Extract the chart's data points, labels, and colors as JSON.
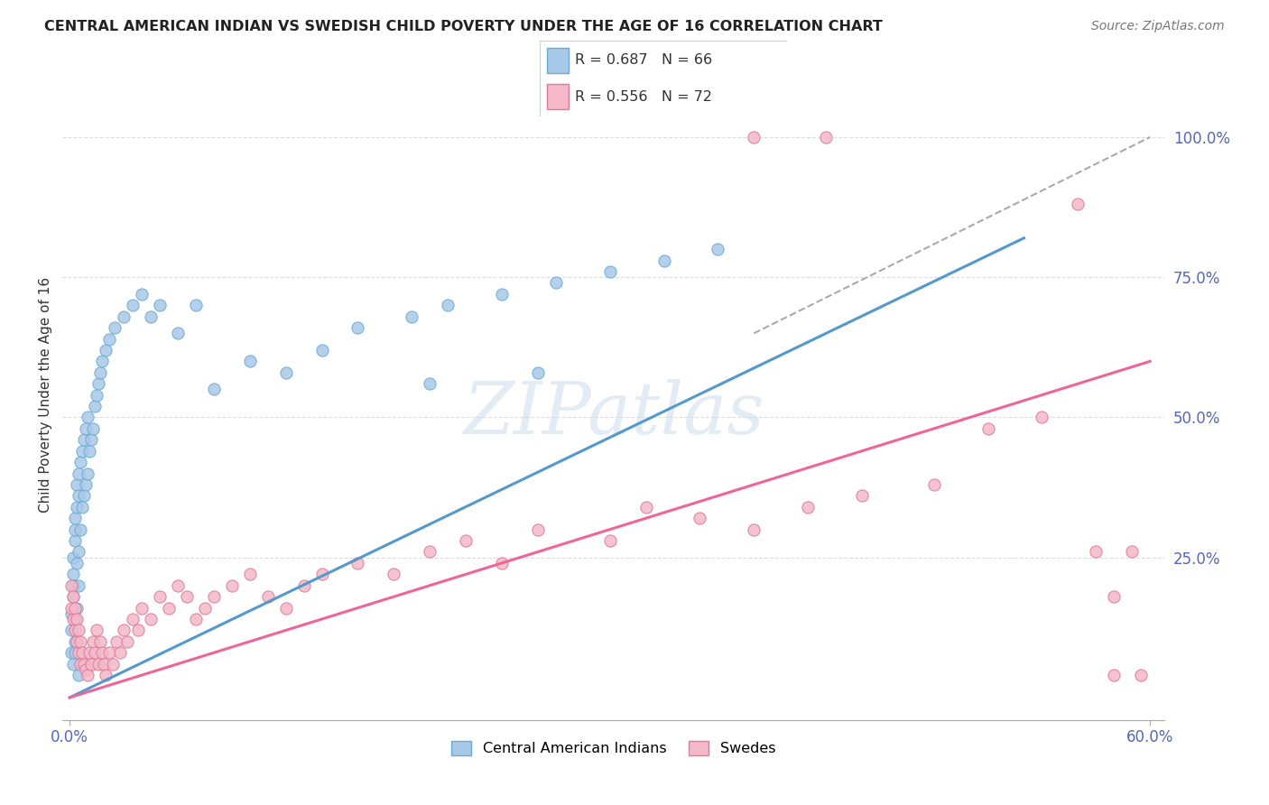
{
  "title": "CENTRAL AMERICAN INDIAN VS SWEDISH CHILD POVERTY UNDER THE AGE OF 16 CORRELATION CHART",
  "source": "Source: ZipAtlas.com",
  "legend_label_1": "Central American Indians",
  "legend_label_2": "Swedes",
  "r1": 0.687,
  "n1": 66,
  "r2": 0.556,
  "n2": 72,
  "color_blue_fill": "#a8c8e8",
  "color_blue_edge": "#6aaad4",
  "color_pink_fill": "#f4b8c8",
  "color_pink_edge": "#e07898",
  "color_blue_line": "#5599cc",
  "color_pink_line": "#ee6699",
  "color_ref_line": "#aaaaaa",
  "blue_line_x0": 0.0,
  "blue_line_y0": 0.0,
  "blue_line_x1": 0.53,
  "blue_line_y1": 0.82,
  "pink_line_x0": 0.0,
  "pink_line_y0": 0.0,
  "pink_line_x1": 0.6,
  "pink_line_y1": 0.6,
  "ref_line_x0": 0.38,
  "ref_line_y0": 0.65,
  "ref_line_x1": 0.6,
  "ref_line_y1": 1.0,
  "xlim_min": -0.004,
  "xlim_max": 0.608,
  "ylim_min": -0.04,
  "ylim_max": 1.12,
  "yticks": [
    0.0,
    0.25,
    0.5,
    0.75,
    1.0
  ],
  "ytick_labels": [
    "",
    "25.0%",
    "50.0%",
    "75.0%",
    "100.0%"
  ],
  "xtick_positions": [
    0.0,
    0.6
  ],
  "xtick_labels": [
    "0.0%",
    "60.0%"
  ],
  "watermark": "ZIPatlas",
  "blue_x": [
    0.001,
    0.001,
    0.001,
    0.002,
    0.002,
    0.002,
    0.002,
    0.003,
    0.003,
    0.003,
    0.003,
    0.003,
    0.004,
    0.004,
    0.004,
    0.004,
    0.005,
    0.005,
    0.005,
    0.005,
    0.006,
    0.006,
    0.007,
    0.007,
    0.008,
    0.008,
    0.009,
    0.009,
    0.01,
    0.01,
    0.011,
    0.012,
    0.013,
    0.014,
    0.015,
    0.016,
    0.017,
    0.018,
    0.02,
    0.022,
    0.025,
    0.03,
    0.035,
    0.04,
    0.045,
    0.05,
    0.06,
    0.07,
    0.08,
    0.1,
    0.12,
    0.14,
    0.16,
    0.19,
    0.21,
    0.24,
    0.27,
    0.3,
    0.33,
    0.36,
    0.002,
    0.003,
    0.005,
    0.008,
    0.2,
    0.26
  ],
  "blue_y": [
    0.08,
    0.12,
    0.15,
    0.18,
    0.2,
    0.22,
    0.25,
    0.1,
    0.14,
    0.28,
    0.3,
    0.32,
    0.16,
    0.24,
    0.34,
    0.38,
    0.2,
    0.26,
    0.36,
    0.4,
    0.3,
    0.42,
    0.34,
    0.44,
    0.36,
    0.46,
    0.38,
    0.48,
    0.4,
    0.5,
    0.44,
    0.46,
    0.48,
    0.52,
    0.54,
    0.56,
    0.58,
    0.6,
    0.62,
    0.64,
    0.66,
    0.68,
    0.7,
    0.72,
    0.68,
    0.7,
    0.65,
    0.7,
    0.55,
    0.6,
    0.58,
    0.62,
    0.66,
    0.68,
    0.7,
    0.72,
    0.74,
    0.76,
    0.78,
    0.8,
    0.06,
    0.08,
    0.04,
    0.06,
    0.56,
    0.58
  ],
  "pink_x": [
    0.001,
    0.001,
    0.002,
    0.002,
    0.003,
    0.003,
    0.004,
    0.004,
    0.005,
    0.005,
    0.006,
    0.006,
    0.007,
    0.008,
    0.009,
    0.01,
    0.011,
    0.012,
    0.013,
    0.014,
    0.015,
    0.016,
    0.017,
    0.018,
    0.019,
    0.02,
    0.022,
    0.024,
    0.026,
    0.028,
    0.03,
    0.032,
    0.035,
    0.038,
    0.04,
    0.045,
    0.05,
    0.055,
    0.06,
    0.065,
    0.07,
    0.075,
    0.08,
    0.09,
    0.1,
    0.11,
    0.12,
    0.13,
    0.14,
    0.16,
    0.18,
    0.2,
    0.22,
    0.24,
    0.26,
    0.3,
    0.32,
    0.35,
    0.38,
    0.41,
    0.44,
    0.48,
    0.51,
    0.54,
    0.57,
    0.59,
    0.38,
    0.42,
    0.58,
    0.595,
    0.56,
    0.58
  ],
  "pink_y": [
    0.16,
    0.2,
    0.14,
    0.18,
    0.12,
    0.16,
    0.1,
    0.14,
    0.08,
    0.12,
    0.06,
    0.1,
    0.08,
    0.06,
    0.05,
    0.04,
    0.08,
    0.06,
    0.1,
    0.08,
    0.12,
    0.06,
    0.1,
    0.08,
    0.06,
    0.04,
    0.08,
    0.06,
    0.1,
    0.08,
    0.12,
    0.1,
    0.14,
    0.12,
    0.16,
    0.14,
    0.18,
    0.16,
    0.2,
    0.18,
    0.14,
    0.16,
    0.18,
    0.2,
    0.22,
    0.18,
    0.16,
    0.2,
    0.22,
    0.24,
    0.22,
    0.26,
    0.28,
    0.24,
    0.3,
    0.28,
    0.34,
    0.32,
    0.3,
    0.34,
    0.36,
    0.38,
    0.48,
    0.5,
    0.26,
    0.26,
    1.0,
    1.0,
    0.04,
    0.04,
    0.88,
    0.18
  ]
}
